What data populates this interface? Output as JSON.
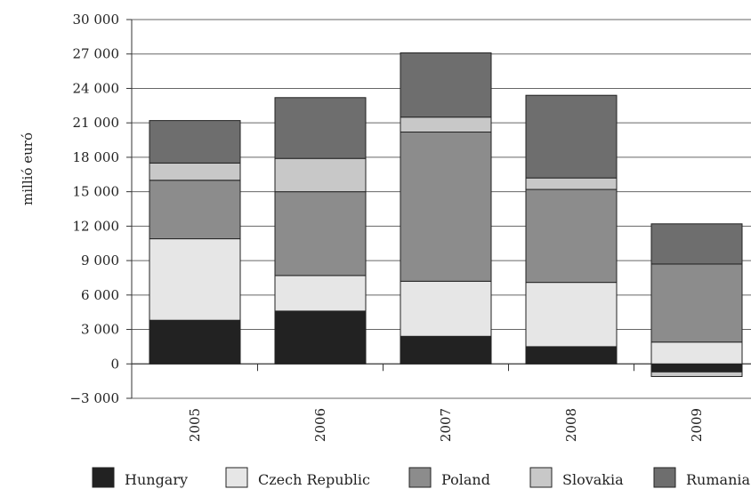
{
  "chart_data": {
    "type": "bar",
    "stacked": true,
    "title": "",
    "xlabel": "",
    "ylabel": "millió euró",
    "ylim": [
      -3000,
      30000
    ],
    "yticks": [
      -3000,
      0,
      3000,
      6000,
      9000,
      12000,
      15000,
      18000,
      21000,
      24000,
      27000,
      30000
    ],
    "ytick_labels": [
      "−3 000",
      "0",
      "3 000",
      "6 000",
      "9 000",
      "12 000",
      "15 000",
      "18 000",
      "21 000",
      "24 000",
      "27 000",
      "30 000"
    ],
    "grid": "horizontal",
    "legend_position": "bottom",
    "categories": [
      "2005",
      "2006",
      "2007",
      "2008",
      "2009"
    ],
    "series": [
      {
        "name": "Hungary",
        "color": "#222222",
        "values": [
          3800,
          4600,
          2400,
          1500,
          -700
        ]
      },
      {
        "name": "Czech Republic",
        "color": "#e6e6e6",
        "values": [
          7100,
          3100,
          4800,
          5600,
          1900
        ]
      },
      {
        "name": "Poland",
        "color": "#8c8c8c",
        "values": [
          5100,
          7300,
          13000,
          8100,
          6800
        ]
      },
      {
        "name": "Slovakia",
        "color": "#c8c8c8",
        "values": [
          1500,
          2900,
          1300,
          1000,
          -400
        ]
      },
      {
        "name": "Rumania",
        "color": "#6e6e6e",
        "values": [
          3700,
          5300,
          5600,
          7200,
          3500
        ]
      }
    ]
  }
}
